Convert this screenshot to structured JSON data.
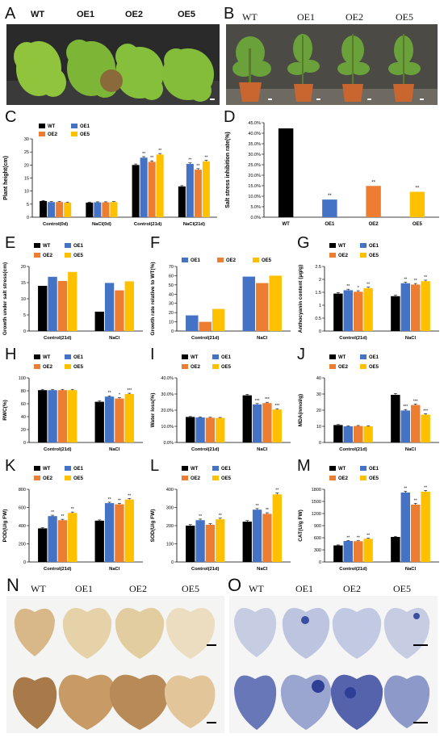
{
  "figure": {
    "panels": {
      "A": {
        "letter": "A",
        "labels": [
          "WT",
          "OE1",
          "OE2",
          "OE5"
        ]
      },
      "B": {
        "letter": "B",
        "labels": [
          "WT",
          "OE1",
          "OE2",
          "OE5"
        ]
      },
      "N": {
        "letter": "N",
        "labels": [
          "WT",
          "OE1",
          "OE2",
          "OE5"
        ]
      },
      "O": {
        "letter": "O",
        "labels": [
          "WT",
          "OE1",
          "OE2",
          "OE5"
        ]
      }
    },
    "colors": {
      "WT": "#000000",
      "OE1": "#4472c4",
      "OE2": "#ed7d31",
      "OE5": "#ffc000",
      "sig": "#222222"
    }
  },
  "chart_data": [
    {
      "id": "C",
      "letter": "C",
      "type": "bar",
      "ylabel": "Plant height(cm)",
      "ylim": [
        0,
        30
      ],
      "yticks": [
        0,
        5,
        10,
        15,
        20,
        25,
        30
      ],
      "categories": [
        "Control(0d)",
        "NaCl(0d)",
        "Control(21d)",
        "NaCl(21d)"
      ],
      "series": [
        {
          "name": "WT",
          "values": [
            6.2,
            5.6,
            20.0,
            11.8
          ],
          "err": [
            0.2,
            0.2,
            0.4,
            0.3
          ]
        },
        {
          "name": "OE1",
          "values": [
            5.8,
            5.7,
            22.8,
            20.4
          ],
          "err": [
            0.2,
            0.2,
            0.4,
            0.4
          ]
        },
        {
          "name": "OE2",
          "values": [
            5.8,
            5.7,
            21.2,
            18.2
          ],
          "err": [
            0.2,
            0.2,
            0.4,
            0.4
          ]
        },
        {
          "name": "OE5",
          "values": [
            5.6,
            5.8,
            24.0,
            21.4
          ],
          "err": [
            0.2,
            0.2,
            0.4,
            0.4
          ]
        }
      ],
      "sig": [
        [
          "",
          "",
          "",
          ""
        ],
        [
          "",
          "",
          "**",
          "**"
        ],
        [
          "",
          "",
          "**",
          "**"
        ],
        [
          "",
          "",
          "**",
          "**"
        ]
      ],
      "legend": [
        "WT",
        "OE1",
        "OE2",
        "OE5"
      ]
    },
    {
      "id": "D",
      "letter": "D",
      "type": "bar",
      "ylabel": "Salt stress inhibition rate(%)",
      "ylim": [
        0,
        45
      ],
      "yticks": [
        0,
        5,
        10,
        15,
        20,
        25,
        30,
        35,
        40,
        45
      ],
      "ytickfmt": "%",
      "categories": [
        "WT",
        "OE1",
        "OE2",
        "OE5"
      ],
      "series": [
        {
          "name": "value",
          "values": [
            42.3,
            8.4,
            14.9,
            12.1
          ],
          "colors": [
            "#000000",
            "#4472c4",
            "#ed7d31",
            "#ffc000"
          ]
        }
      ],
      "sig": [
        "",
        "**",
        "**",
        "**"
      ]
    },
    {
      "id": "E",
      "letter": "E",
      "type": "bar",
      "ylabel": "Growth under salt stress(cm)",
      "ylim": [
        0,
        20
      ],
      "yticks": [
        0,
        5,
        10,
        15,
        20
      ],
      "categories": [
        "Control(21d)",
        "NaCl"
      ],
      "series": [
        {
          "name": "WT",
          "values": [
            14.0,
            6.0
          ]
        },
        {
          "name": "OE1",
          "values": [
            16.8,
            14.9
          ]
        },
        {
          "name": "OE2",
          "values": [
            15.5,
            12.6
          ]
        },
        {
          "name": "OE5",
          "values": [
            18.3,
            15.4
          ]
        }
      ],
      "legend": [
        "WT",
        "OE1",
        "OE2",
        "OE5"
      ]
    },
    {
      "id": "F",
      "letter": "F",
      "type": "bar",
      "ylabel": "Growth rate relative to WT(%)",
      "ylim": [
        0,
        70
      ],
      "yticks": [
        0,
        10,
        20,
        30,
        40,
        50,
        60,
        70
      ],
      "categories": [
        "Control(21d)",
        "NaCl"
      ],
      "series": [
        {
          "name": "OE1",
          "values": [
            17,
            59
          ]
        },
        {
          "name": "OE2",
          "values": [
            10,
            52
          ]
        },
        {
          "name": "OE5",
          "values": [
            24,
            60
          ]
        }
      ],
      "legend": [
        "OE1",
        "OE2",
        "OE5"
      ]
    },
    {
      "id": "G",
      "letter": "G",
      "type": "bar",
      "ylabel": "Anthocyanin content (μg/g)",
      "ylim": [
        0,
        2.5
      ],
      "yticks": [
        0,
        0.5,
        1,
        1.5,
        2,
        2.5
      ],
      "categories": [
        "Control(21d)",
        "NaCl"
      ],
      "series": [
        {
          "name": "WT",
          "values": [
            1.45,
            1.35
          ],
          "err": [
            0.04,
            0.04
          ]
        },
        {
          "name": "OE1",
          "values": [
            1.58,
            1.85
          ],
          "err": [
            0.04,
            0.04
          ]
        },
        {
          "name": "OE2",
          "values": [
            1.52,
            1.8
          ],
          "err": [
            0.04,
            0.04
          ]
        },
        {
          "name": "OE5",
          "values": [
            1.66,
            1.93
          ],
          "err": [
            0.04,
            0.04
          ]
        }
      ],
      "sig": [
        [
          "",
          ""
        ],
        [
          "**",
          "**"
        ],
        [
          "*",
          "**"
        ],
        [
          "**",
          "**"
        ]
      ],
      "legend": [
        "WT",
        "OE1",
        "OE2",
        "OE5"
      ]
    },
    {
      "id": "H",
      "letter": "H",
      "type": "bar",
      "ylabel": "RWC(%)",
      "ylim": [
        0,
        100
      ],
      "yticks": [
        0,
        20,
        40,
        60,
        80,
        100
      ],
      "categories": [
        "Control(21d)",
        "NaCl"
      ],
      "series": [
        {
          "name": "WT",
          "values": [
            81,
            63
          ],
          "err": [
            1.2,
            1.5
          ]
        },
        {
          "name": "OE1",
          "values": [
            81,
            71
          ],
          "err": [
            1.2,
            1.2
          ]
        },
        {
          "name": "OE2",
          "values": [
            81,
            68
          ],
          "err": [
            1.2,
            1.2
          ]
        },
        {
          "name": "OE5",
          "values": [
            81,
            75
          ],
          "err": [
            1.2,
            1.2
          ]
        }
      ],
      "sig": [
        [
          "",
          ""
        ],
        [
          "",
          "**"
        ],
        [
          "",
          "*"
        ],
        [
          "",
          "***"
        ]
      ],
      "legend": [
        "WT",
        "OE1",
        "OE2",
        "OE5"
      ]
    },
    {
      "id": "I",
      "letter": "I",
      "type": "bar",
      "ylabel": "Water loss(%)",
      "ylim": [
        0,
        40
      ],
      "yticks": [
        0,
        10,
        20,
        30,
        40
      ],
      "ytickfmt": "%",
      "categories": [
        "Control(21d)",
        "NaCl"
      ],
      "series": [
        {
          "name": "WT",
          "values": [
            15.8,
            29.2
          ],
          "err": [
            0.3,
            0.6
          ]
        },
        {
          "name": "OE1",
          "values": [
            15.5,
            23.6
          ],
          "err": [
            0.3,
            0.5
          ]
        },
        {
          "name": "OE2",
          "values": [
            15.3,
            24.4
          ],
          "err": [
            0.3,
            0.5
          ]
        },
        {
          "name": "OE5",
          "values": [
            15.2,
            20.4
          ],
          "err": [
            0.3,
            0.5
          ]
        }
      ],
      "sig": [
        [
          "",
          ""
        ],
        [
          "",
          "***"
        ],
        [
          "",
          "***"
        ],
        [
          "",
          "***"
        ]
      ],
      "legend": [
        "WT",
        "OE1",
        "OE2",
        "OE5"
      ]
    },
    {
      "id": "J",
      "letter": "J",
      "type": "bar",
      "ylabel": "MDA(nmol/g)",
      "ylim": [
        0,
        40
      ],
      "yticks": [
        0,
        10,
        20,
        30,
        40
      ],
      "categories": [
        "Control(21d)",
        "NaCl"
      ],
      "series": [
        {
          "name": "WT",
          "values": [
            10.8,
            29.5
          ],
          "err": [
            0.3,
            0.8
          ]
        },
        {
          "name": "OE1",
          "values": [
            10.0,
            19.8
          ],
          "err": [
            0.3,
            0.6
          ]
        },
        {
          "name": "OE2",
          "values": [
            10.2,
            23.2
          ],
          "err": [
            0.3,
            0.6
          ]
        },
        {
          "name": "OE5",
          "values": [
            10.0,
            17.2
          ],
          "err": [
            0.3,
            0.6
          ]
        }
      ],
      "sig": [
        [
          "",
          ""
        ],
        [
          "",
          "***"
        ],
        [
          "",
          "***"
        ],
        [
          "",
          "***"
        ]
      ],
      "legend": [
        "WT",
        "OE1",
        "OE2",
        "OE5"
      ]
    },
    {
      "id": "K",
      "letter": "K",
      "type": "bar",
      "ylabel": "POD(U/g FW)",
      "ylim": [
        0,
        800
      ],
      "yticks": [
        0,
        200,
        400,
        600,
        800
      ],
      "categories": [
        "Control(21d)",
        "NaCl"
      ],
      "series": [
        {
          "name": "WT",
          "values": [
            370,
            455
          ],
          "err": [
            8,
            8
          ]
        },
        {
          "name": "OE1",
          "values": [
            505,
            648
          ],
          "err": [
            10,
            10
          ]
        },
        {
          "name": "OE2",
          "values": [
            460,
            635
          ],
          "err": [
            10,
            10
          ]
        },
        {
          "name": "OE5",
          "values": [
            540,
            688
          ],
          "err": [
            10,
            10
          ]
        }
      ],
      "sig": [
        [
          "",
          ""
        ],
        [
          "**",
          "**"
        ],
        [
          "**",
          "**"
        ],
        [
          "**",
          "**"
        ]
      ],
      "legend": [
        "WT",
        "OE1",
        "OE2",
        "OE5"
      ]
    },
    {
      "id": "L",
      "letter": "L",
      "type": "bar",
      "ylabel": "SOD(U/g FW)",
      "ylim": [
        0,
        400
      ],
      "yticks": [
        0,
        100,
        200,
        300,
        400
      ],
      "categories": [
        "Control(21d)",
        "NaCl"
      ],
      "series": [
        {
          "name": "WT",
          "values": [
            200,
            222
          ],
          "err": [
            6,
            6
          ]
        },
        {
          "name": "OE1",
          "values": [
            230,
            288
          ],
          "err": [
            6,
            6
          ]
        },
        {
          "name": "OE2",
          "values": [
            205,
            265
          ],
          "err": [
            6,
            6
          ]
        },
        {
          "name": "OE5",
          "values": [
            235,
            372
          ],
          "err": [
            6,
            8
          ]
        }
      ],
      "sig": [
        [
          "",
          ""
        ],
        [
          "**",
          "**"
        ],
        [
          "",
          "**"
        ],
        [
          "**",
          "**"
        ]
      ],
      "legend": [
        "WT",
        "OE1",
        "OE2",
        "OE5"
      ]
    },
    {
      "id": "M",
      "letter": "M",
      "type": "bar",
      "ylabel": "CAT(U/g FW)",
      "ylim": [
        0,
        1800
      ],
      "yticks": [
        0,
        300,
        600,
        900,
        1200,
        1500,
        1800
      ],
      "categories": [
        "Control(21d)",
        "NaCl"
      ],
      "series": [
        {
          "name": "WT",
          "values": [
            410,
            620
          ],
          "err": [
            12,
            15
          ]
        },
        {
          "name": "OE1",
          "values": [
            520,
            1720
          ],
          "err": [
            12,
            30
          ]
        },
        {
          "name": "OE2",
          "values": [
            515,
            1420
          ],
          "err": [
            12,
            30
          ]
        },
        {
          "name": "OE5",
          "values": [
            575,
            1740
          ],
          "err": [
            12,
            30
          ]
        }
      ],
      "sig": [
        [
          "",
          ""
        ],
        [
          "**",
          "**"
        ],
        [
          "**",
          "**"
        ],
        [
          "**",
          "**"
        ]
      ],
      "legend": [
        "WT",
        "OE1",
        "OE2",
        "OE5"
      ]
    }
  ]
}
